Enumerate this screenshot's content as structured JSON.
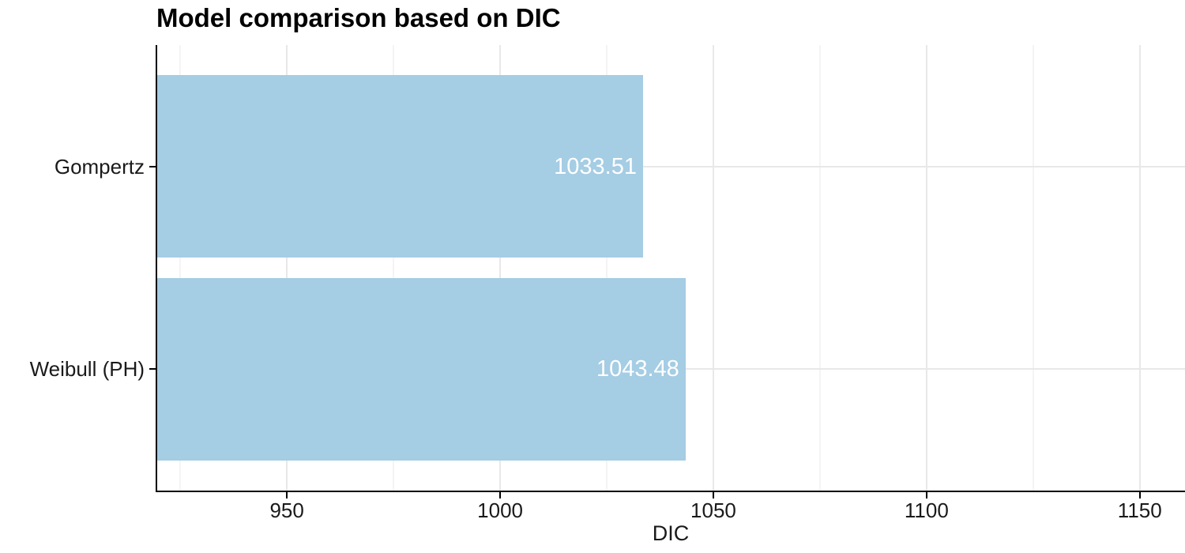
{
  "chart_data": {
    "type": "bar",
    "orientation": "horizontal",
    "title": "Model comparison based on DIC",
    "xlabel": "DIC",
    "ylabel": "",
    "categories": [
      "Gompertz",
      "Weibull (PH)"
    ],
    "values": [
      1033.51,
      1043.48
    ],
    "value_labels": [
      "1033.51",
      "1043.48"
    ],
    "xlim": [
      919.4,
      1160.6
    ],
    "x_major_ticks": [
      950,
      1000,
      1050,
      1100,
      1150
    ],
    "x_minor_ticks": [
      925,
      975,
      1025,
      1075,
      1125
    ],
    "grid": "on",
    "legend": "none",
    "colors": {
      "bar_fill": "#a5cde4",
      "bar_label_text": "#ffffff",
      "axis_line": "#000000",
      "axis_text": "#1a1a1a",
      "title_text": "#000000",
      "grid_major": "#e8e8e8",
      "grid_minor": "#f4f4f4",
      "background": "#ffffff"
    }
  }
}
